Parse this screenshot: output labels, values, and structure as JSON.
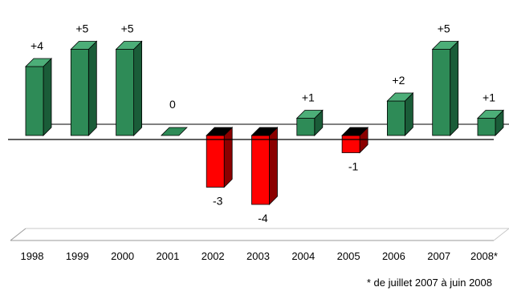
{
  "chart_data": {
    "type": "bar",
    "categories": [
      "1998",
      "1999",
      "2000",
      "2001",
      "2002",
      "2003",
      "2004",
      "2005",
      "2006",
      "2007",
      "2008*"
    ],
    "values": [
      4,
      5,
      5,
      0,
      -3,
      -4,
      1,
      -1,
      2,
      5,
      1
    ],
    "data_labels": [
      "+4",
      "+5",
      "+5",
      "0",
      "-3",
      "-4",
      "+1",
      "-1",
      "+2",
      "+5",
      "+1"
    ],
    "footnote": "* de juillet 2007 à juin 2008",
    "title": "",
    "xlabel": "",
    "ylabel": "",
    "grid": false,
    "style": "3d-columns"
  },
  "colors": {
    "positive_front": "#2e8b57",
    "positive_side": "#1a5c38",
    "positive_top": "#4cae78",
    "negative_front": "#ff0000",
    "negative_side": "#8b0000",
    "negative_top": "#000000",
    "zero_plane": "#2e8b57"
  }
}
